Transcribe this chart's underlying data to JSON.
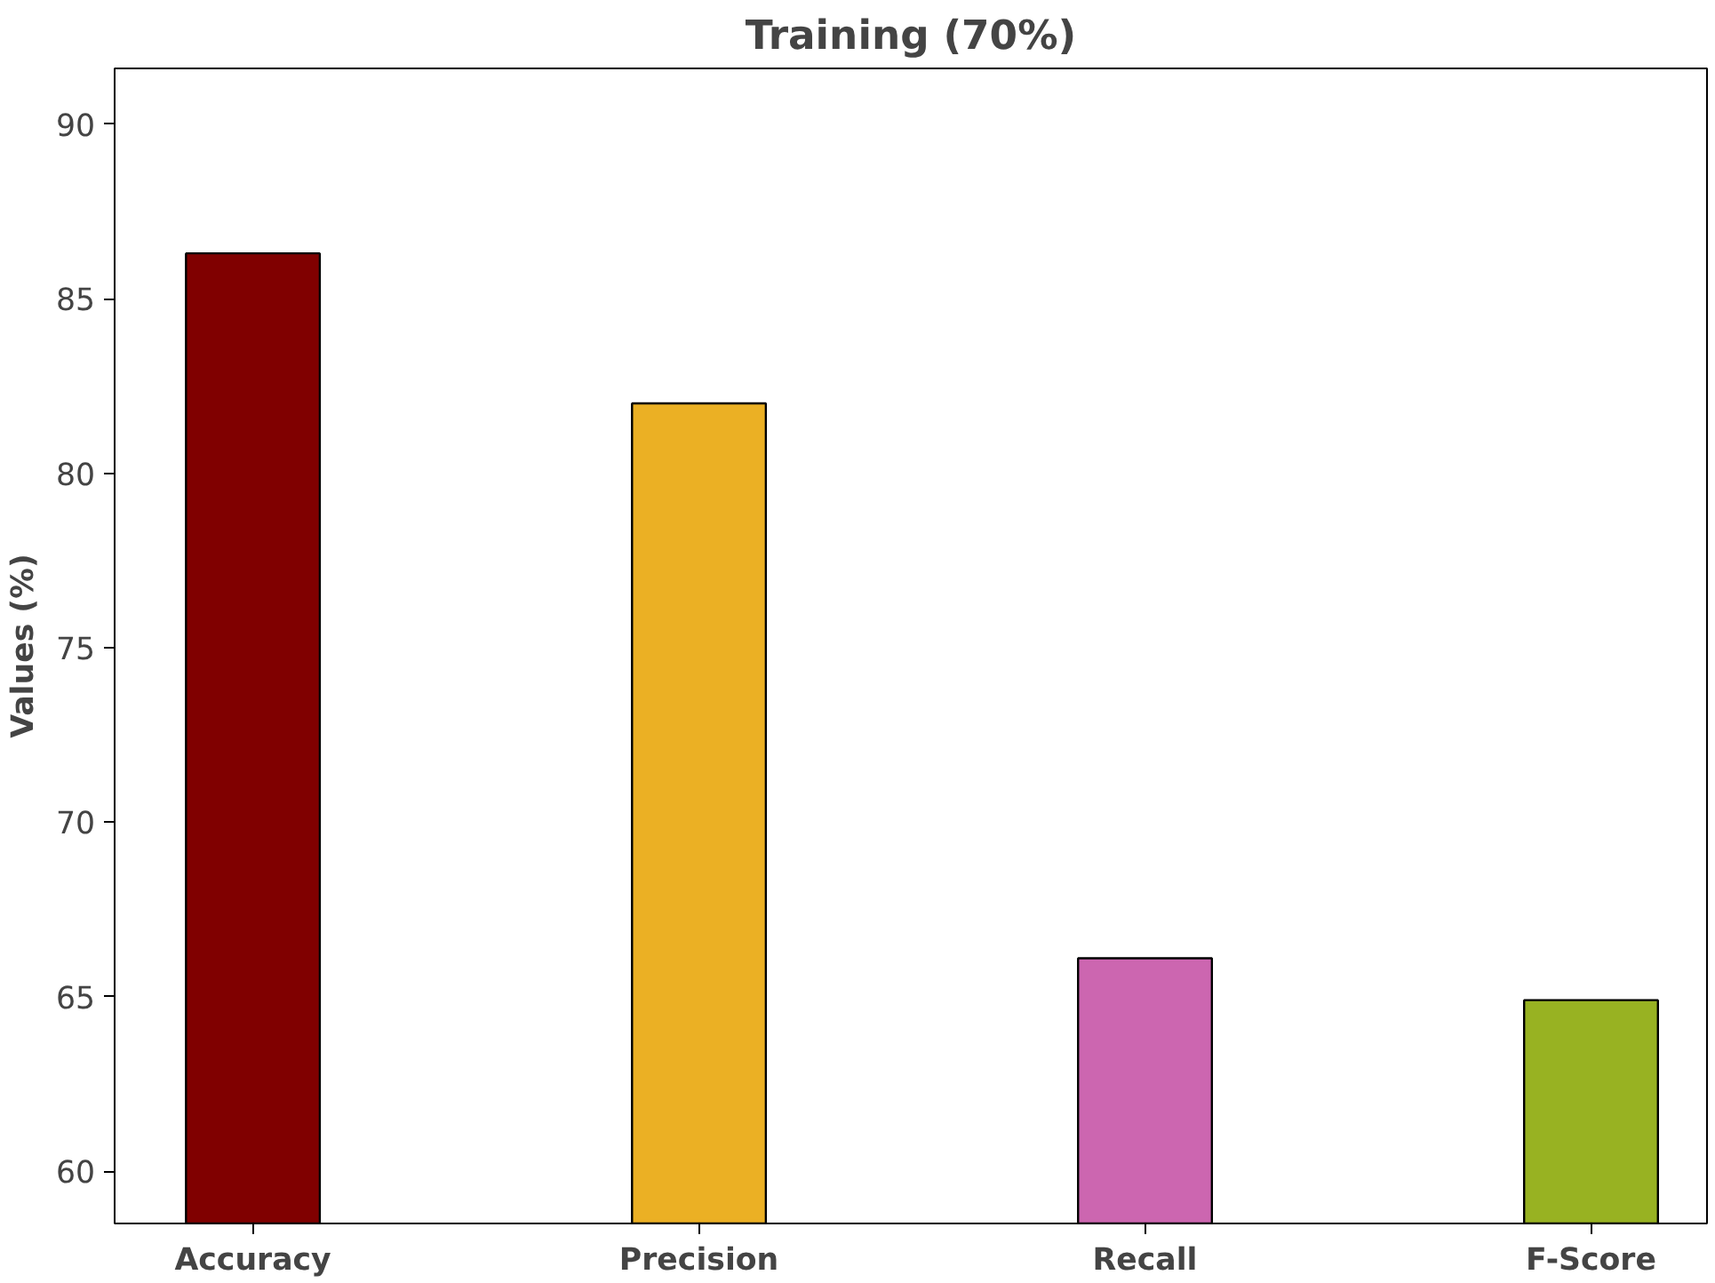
{
  "chart_data": {
    "type": "bar",
    "title": "Training (70%)",
    "ylabel": "Values (%)",
    "categories": [
      "Accuracy",
      "Precision",
      "Recall",
      "F-Score"
    ],
    "values": [
      86.3,
      82.0,
      66.1,
      64.9
    ],
    "colors": [
      "#800000",
      "#ebb024",
      "#cc66b0",
      "#98b222"
    ],
    "ylim": [
      58.5,
      91.6
    ],
    "yticks": [
      60,
      65,
      70,
      75,
      80,
      85,
      90
    ],
    "grid": false
  }
}
